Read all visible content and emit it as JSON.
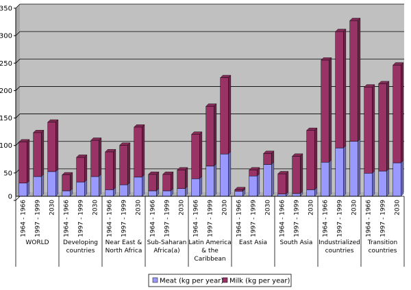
{
  "chart_data": {
    "type": "bar",
    "stacked": true,
    "title": "",
    "xlabel": "",
    "ylabel": "",
    "ylim": [
      0,
      350
    ],
    "yticks": [
      0,
      50,
      100,
      150,
      200,
      250,
      300,
      350
    ],
    "grid": true,
    "legend_position": "bottom",
    "period_labels": [
      "1964 - 1966",
      "1997 - 1999",
      "2030"
    ],
    "groups": [
      {
        "label": [
          "WORLD"
        ]
      },
      {
        "label": [
          "Developing",
          "countries"
        ]
      },
      {
        "label": [
          "Near East &",
          "North Africa"
        ]
      },
      {
        "label": [
          "Sub-Saharan",
          "Africa(a)"
        ]
      },
      {
        "label": [
          "Latin America",
          "& the",
          "Caribbean"
        ]
      },
      {
        "label": [
          "East Asia"
        ]
      },
      {
        "label": [
          "South Asia"
        ]
      },
      {
        "label": [
          "Industrialized",
          "countries"
        ]
      },
      {
        "label": [
          "Transition",
          "countries"
        ]
      }
    ],
    "series": [
      {
        "name": "Meat (kg per year)",
        "color": "#9999ff",
        "values": [
          24,
          36,
          45,
          10,
          26,
          36,
          12,
          21,
          35,
          10,
          10,
          14,
          32,
          55,
          77,
          9,
          37,
          58,
          4,
          5,
          12,
          62,
          88,
          100,
          42,
          46,
          61
        ]
      },
      {
        "name": "Milk (kg per year)",
        "color": "#993366",
        "values": [
          75,
          80,
          90,
          29,
          45,
          66,
          69,
          72,
          91,
          30,
          30,
          34,
          81,
          109,
          139,
          3,
          11,
          20,
          37,
          68,
          108,
          186,
          212,
          220,
          157,
          159,
          178
        ]
      }
    ]
  }
}
